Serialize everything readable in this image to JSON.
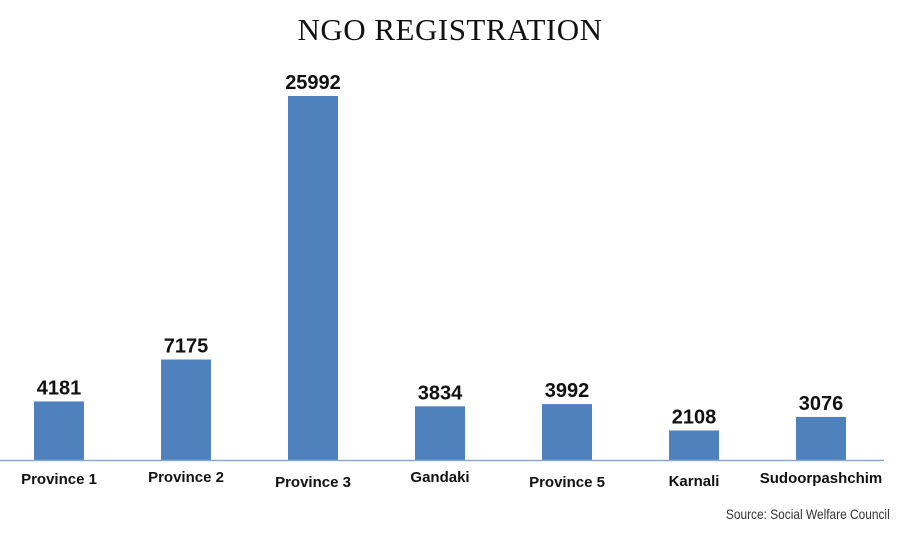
{
  "chart_data": {
    "type": "bar",
    "title": "NGO REGISTRATION",
    "categories": [
      "Province 1",
      "Province 2",
      "Province 3",
      "Gandaki",
      "Province 5",
      "Karnali",
      "Sudoorpashchim"
    ],
    "values": [
      4181,
      7175,
      25992,
      3834,
      3992,
      2108,
      3076
    ],
    "data_labels": [
      "4181",
      "7175",
      "25992",
      "3834",
      "3992",
      "2108",
      "3076"
    ],
    "ylim": [
      0,
      25992
    ],
    "grid": false,
    "xlabel": "",
    "ylabel": "",
    "bar_color": "#4f81bd",
    "axis_color": "#8aa9cf"
  },
  "source": "Source: Social Welfare  Council"
}
